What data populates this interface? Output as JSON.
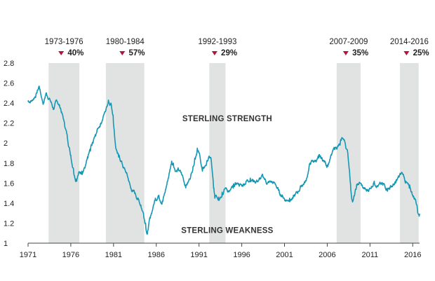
{
  "chart_data": {
    "type": "line",
    "title": "",
    "xlabel": "",
    "ylabel": "",
    "xlim": [
      1971,
      2016.8
    ],
    "ylim": [
      1,
      2.8
    ],
    "x_ticks": [
      1971,
      1976,
      1981,
      1986,
      1991,
      1996,
      2001,
      2006,
      2011,
      2016
    ],
    "x_tick_labels": [
      "1971",
      "1976",
      "1981",
      "1986",
      "1991",
      "1996",
      "2001",
      "2006",
      "2011",
      "2016"
    ],
    "y_ticks": [
      1,
      1.2,
      1.4,
      1.6,
      1.8,
      2,
      2.2,
      2.4,
      2.6,
      2.8
    ],
    "y_tick_labels": [
      "1",
      "1.2",
      "1.4",
      "1.6",
      "1.8",
      "2",
      "2.2",
      "2.4",
      "2.6",
      "2.8"
    ],
    "grid": false,
    "colors": {
      "line": "#1497b3",
      "band": "#e1e3e3",
      "marker": "#b5123e",
      "text": "#222222"
    },
    "periods": [
      {
        "label": "1973-1976",
        "drop": "40%",
        "start": 1973.4,
        "end": 1977.0
      },
      {
        "label": "1980-1984",
        "drop": "57%",
        "start": 1980.1,
        "end": 1984.6
      },
      {
        "label": "1992-1993",
        "drop": "29%",
        "start": 1992.2,
        "end": 1994.1
      },
      {
        "label": "2007-2009",
        "drop": "35%",
        "start": 2007.1,
        "end": 2009.9
      },
      {
        "label": "2014-2016",
        "drop": "25%",
        "start": 2014.5,
        "end": 2016.7
      }
    ],
    "annotations": [
      {
        "text": "STERLING STRENGTH",
        "x": 1994.3,
        "y": 2.22
      },
      {
        "text": "STERLING WEAKNESS",
        "x": 1994.3,
        "y": 1.1
      }
    ],
    "series": [
      {
        "x": [
          1971.0,
          1971.5,
          1972.0,
          1972.3,
          1972.6,
          1972.8,
          1973.1,
          1973.5,
          1974.0,
          1974.4,
          1974.8,
          1975.2,
          1975.6,
          1976.0,
          1976.3,
          1976.6,
          1976.9,
          1977.3,
          1977.7,
          1978.0,
          1978.3,
          1978.6,
          1978.9,
          1979.2,
          1979.5,
          1979.8,
          1980.1,
          1980.4,
          1980.7,
          1980.95,
          1981.2,
          1981.4,
          1981.6,
          1981.9,
          1982.2,
          1982.5,
          1982.8,
          1983.0,
          1983.3,
          1983.6,
          1983.9,
          1984.2,
          1984.5,
          1984.75,
          1984.95,
          1985.1,
          1985.3,
          1985.6,
          1985.9,
          1986.3,
          1986.7,
          1987.0,
          1987.4,
          1987.8,
          1988.0,
          1988.3,
          1988.6,
          1989.0,
          1989.4,
          1989.8,
          1990.1,
          1990.5,
          1990.8,
          1991.1,
          1991.4,
          1991.8,
          1992.1,
          1992.4,
          1992.7,
          1992.85,
          1993.0,
          1993.3,
          1993.7,
          1994.1,
          1994.6,
          1995.0,
          1995.5,
          1996.0,
          1996.5,
          1997.0,
          1997.5,
          1998.0,
          1998.5,
          1999.0,
          1999.5,
          2000.0,
          2000.4,
          2000.8,
          2001.2,
          2001.6,
          2002.0,
          2002.5,
          2003.0,
          2003.5,
          2004.0,
          2004.5,
          2005.0,
          2005.5,
          2006.0,
          2006.5,
          2007.0,
          2007.5,
          2007.8,
          2008.1,
          2008.4,
          2008.6,
          2008.8,
          2009.0,
          2009.2,
          2009.5,
          2009.8,
          2010.2,
          2010.6,
          2011.0,
          2011.5,
          2012.0,
          2012.5,
          2013.0,
          2013.5,
          2014.0,
          2014.4,
          2014.8,
          2015.2,
          2015.6,
          2016.0,
          2016.3,
          2016.5,
          2016.6,
          2016.8
        ],
        "y": [
          2.42,
          2.43,
          2.5,
          2.57,
          2.45,
          2.4,
          2.5,
          2.45,
          2.34,
          2.42,
          2.35,
          2.22,
          2.06,
          1.88,
          1.75,
          1.64,
          1.7,
          1.72,
          1.77,
          1.85,
          1.92,
          2.0,
          2.07,
          2.15,
          2.2,
          2.27,
          2.33,
          2.43,
          2.4,
          2.28,
          2.0,
          1.92,
          1.86,
          1.82,
          1.75,
          1.7,
          1.62,
          1.55,
          1.52,
          1.48,
          1.44,
          1.38,
          1.3,
          1.2,
          1.09,
          1.18,
          1.25,
          1.35,
          1.45,
          1.48,
          1.42,
          1.5,
          1.65,
          1.82,
          1.8,
          1.72,
          1.73,
          1.68,
          1.58,
          1.62,
          1.7,
          1.85,
          1.95,
          1.87,
          1.72,
          1.78,
          1.85,
          1.85,
          1.55,
          1.45,
          1.48,
          1.46,
          1.51,
          1.55,
          1.52,
          1.55,
          1.6,
          1.57,
          1.62,
          1.65,
          1.62,
          1.63,
          1.66,
          1.6,
          1.61,
          1.58,
          1.5,
          1.47,
          1.43,
          1.45,
          1.45,
          1.5,
          1.58,
          1.62,
          1.8,
          1.82,
          1.85,
          1.83,
          1.78,
          1.88,
          1.96,
          1.98,
          2.05,
          2.0,
          1.9,
          1.73,
          1.5,
          1.42,
          1.48,
          1.58,
          1.6,
          1.55,
          1.52,
          1.55,
          1.62,
          1.58,
          1.58,
          1.55,
          1.57,
          1.6,
          1.66,
          1.7,
          1.62,
          1.55,
          1.48,
          1.44,
          1.38,
          1.3,
          1.29
        ]
      }
    ]
  }
}
